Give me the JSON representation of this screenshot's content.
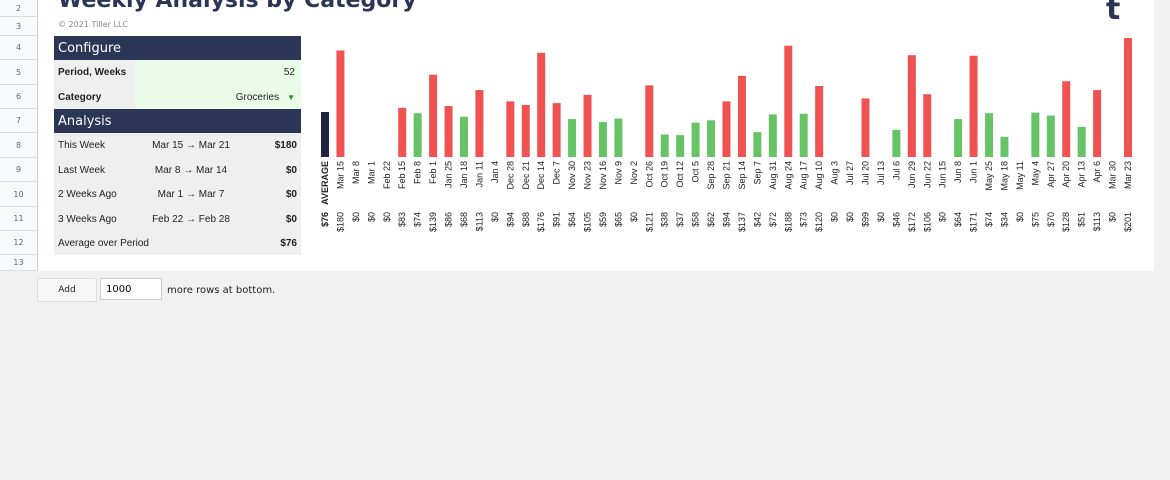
{
  "title": "Weekly Analysis by Category",
  "copyright": "© 2021 Tiller LLC",
  "logo": "t",
  "row_numbers": [
    "2",
    "3",
    "4",
    "5",
    "6",
    "7",
    "8",
    "9",
    "10",
    "11",
    "12",
    "13"
  ],
  "configure": {
    "header": "Configure",
    "period_label": "Period, Weeks",
    "period_value": "52",
    "category_label": "Category",
    "category_value": "Groceries"
  },
  "analysis": {
    "header": "Analysis",
    "rows": [
      {
        "label": "This Week",
        "range": "Mar 15 → Mar 21",
        "amount": "$180"
      },
      {
        "label": "Last Week",
        "range": "Mar 8 → Mar 14",
        "amount": "$0"
      },
      {
        "label": "2 Weeks Ago",
        "range": "Mar 1 → Mar 7",
        "amount": "$0"
      },
      {
        "label": "3 Weeks Ago",
        "range": "Feb 22 → Feb 28",
        "amount": "$0"
      },
      {
        "label": "Average over Period",
        "range": "",
        "amount": "$76"
      }
    ]
  },
  "footer": {
    "add_label": "Add",
    "rows_value": "1000",
    "more_text": "more rows at bottom."
  },
  "colors": {
    "above": "#f05252",
    "below": "#66c466",
    "average": "#1e2640"
  },
  "chart_data": {
    "type": "bar",
    "categories": [
      "AVERAGE",
      "Mar 15",
      "Mar 8",
      "Mar 1",
      "Feb 22",
      "Feb 15",
      "Feb 8",
      "Feb 1",
      "Jan 25",
      "Jan 18",
      "Jan 11",
      "Jan 4",
      "Dec 28",
      "Dec 21",
      "Dec 14",
      "Dec 7",
      "Nov 30",
      "Nov 23",
      "Nov 16",
      "Nov 9",
      "Nov 2",
      "Oct 26",
      "Oct 19",
      "Oct 12",
      "Oct 5",
      "Sep 28",
      "Sep 21",
      "Sep 14",
      "Sep 7",
      "Aug 31",
      "Aug 24",
      "Aug 17",
      "Aug 10",
      "Aug 3",
      "Jul 27",
      "Jul 20",
      "Jul 13",
      "Jul 6",
      "Jun 29",
      "Jun 22",
      "Jun 15",
      "Jun 8",
      "Jun 1",
      "May 25",
      "May 18",
      "May 11",
      "May 4",
      "Apr 27",
      "Apr 20",
      "Apr 13",
      "Apr 6",
      "Mar 30",
      "Mar 23"
    ],
    "values": [
      76,
      180,
      0,
      0,
      0,
      83,
      74,
      139,
      86,
      68,
      113,
      0,
      94,
      88,
      176,
      91,
      64,
      105,
      59,
      65,
      0,
      121,
      38,
      37,
      58,
      62,
      94,
      137,
      42,
      72,
      188,
      73,
      120,
      0,
      0,
      99,
      0,
      46,
      172,
      106,
      0,
      64,
      171,
      74,
      34,
      0,
      75,
      70,
      128,
      51,
      113,
      0,
      201
    ],
    "value_labels": [
      "$76",
      "$180",
      "$0",
      "$0",
      "$0",
      "$83",
      "$74",
      "$139",
      "$86",
      "$68",
      "$113",
      "$0",
      "$94",
      "$88",
      "$176",
      "$91",
      "$64",
      "$105",
      "$59",
      "$65",
      "$0",
      "$121",
      "$38",
      "$37",
      "$58",
      "$62",
      "$94",
      "$137",
      "$42",
      "$72",
      "$188",
      "$73",
      "$120",
      "$0",
      "$0",
      "$99",
      "$0",
      "$46",
      "$172",
      "$106",
      "$0",
      "$64",
      "$171",
      "$74",
      "$34",
      "$0",
      "$75",
      "$70",
      "$128",
      "$51",
      "$113",
      "$0",
      "$201"
    ],
    "ylim": [
      0,
      201
    ]
  }
}
